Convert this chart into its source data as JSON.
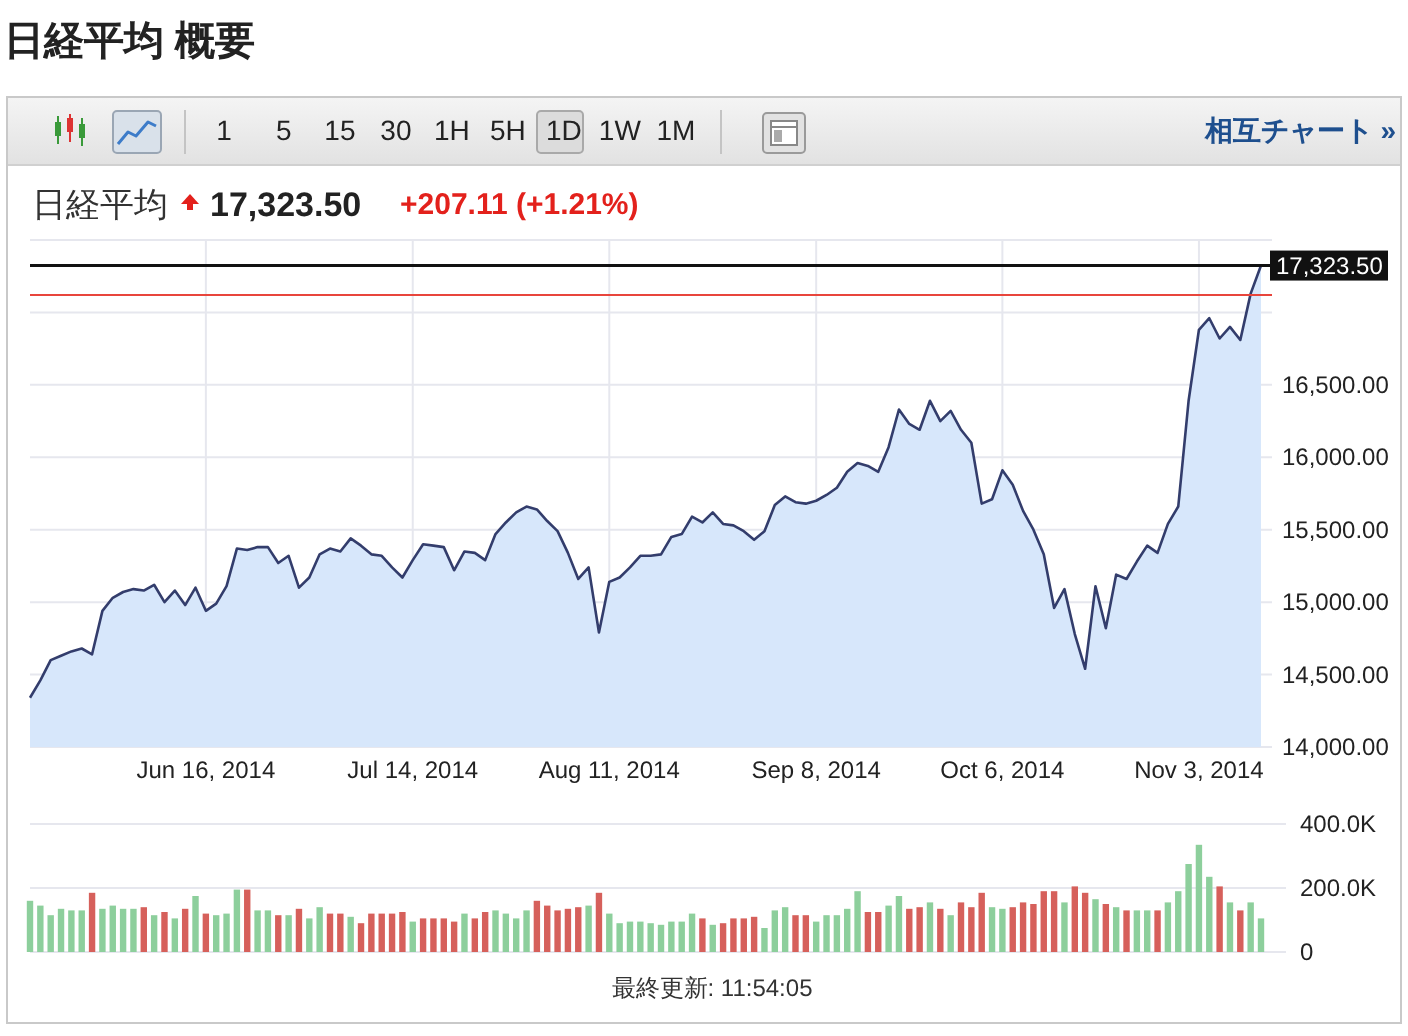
{
  "chart_data": [
    {
      "type": "area",
      "title": "日経平均 概要",
      "subtitle": "日経平均",
      "categories": [
        null,
        null,
        null,
        null,
        null,
        null,
        null,
        null,
        null,
        null,
        null,
        null,
        null,
        null,
        null,
        null,
        null,
        "Jun 16, 2014",
        null,
        null,
        null,
        null,
        null,
        null,
        null,
        null,
        null,
        null,
        null,
        null,
        null,
        null,
        null,
        null,
        null,
        null,
        null,
        "Jul 14, 2014",
        null,
        null,
        null,
        null,
        null,
        null,
        null,
        null,
        null,
        null,
        null,
        null,
        null,
        null,
        null,
        null,
        null,
        null,
        "Aug 11, 2014",
        null,
        null,
        null,
        null,
        null,
        null,
        null,
        null,
        null,
        null,
        null,
        null,
        null,
        null,
        null,
        null,
        null,
        null,
        null,
        "Sep 8, 2014",
        null,
        null,
        null,
        null,
        null,
        null,
        null,
        null,
        null,
        null,
        null,
        null,
        null,
        null,
        null,
        null,
        null,
        "Oct 6, 2014",
        null,
        null,
        null,
        null,
        null,
        null,
        null,
        null,
        null,
        null,
        null,
        null,
        null,
        null,
        null,
        null,
        null,
        null,
        "Nov 3, 2014",
        null,
        null,
        null,
        null,
        null,
        null
      ],
      "series": [
        {
          "color": "#d7e7fb",
          "values": [
            14340,
            14460,
            14600,
            14630,
            14660,
            14680,
            14640,
            14940,
            15030,
            15070,
            15090,
            15080,
            15120,
            15000,
            15080,
            14980,
            15100,
            14940,
            14990,
            15110,
            15370,
            15360,
            15380,
            15380,
            15270,
            15320,
            15100,
            15170,
            15330,
            15370,
            15350,
            15440,
            15390,
            15330,
            15320,
            15240,
            15170,
            15290,
            15400,
            15390,
            15380,
            15220,
            15350,
            15340,
            15290,
            15470,
            15550,
            15620,
            15660,
            15640,
            15560,
            15490,
            15340,
            15160,
            15240,
            14790,
            15140,
            15170,
            15240,
            15320,
            15320,
            15330,
            15450,
            15470,
            15590,
            15550,
            15620,
            15540,
            15530,
            15490,
            15430,
            15490,
            15670,
            15730,
            15690,
            15680,
            15700,
            15740,
            15790,
            15900,
            15960,
            15940,
            15900,
            16070,
            16330,
            16230,
            16190,
            16390,
            16250,
            16320,
            16190,
            16100,
            15680,
            15710,
            15910,
            15810,
            15630,
            15500,
            15330,
            14960,
            15090,
            14780,
            14540,
            15110,
            14820,
            15190,
            15160,
            15280,
            15390,
            15340,
            15540,
            15660,
            16390,
            16880,
            16960,
            16820,
            16900,
            16810,
            17130,
            17323.5
          ]
        }
      ],
      "ylim": [
        14000,
        17500
      ],
      "yticks": [
        {
          "value": 14000,
          "label": "14,000.00"
        },
        {
          "value": 14500,
          "label": "14,500.00"
        },
        {
          "value": 15000,
          "label": "15,000.00"
        },
        {
          "value": 15500,
          "label": "15,500.00"
        },
        {
          "value": 16000,
          "label": "16,000.00"
        },
        {
          "value": 16500,
          "label": "16,500.00"
        },
        {
          "value": 17000,
          "label": null
        },
        {
          "value": 17500,
          "label": null
        }
      ],
      "grid": true,
      "ref_lines": [
        {
          "axis": "y",
          "value": 17323.5,
          "label": "17,323.50",
          "color": "#111111"
        },
        {
          "axis": "y",
          "value": 17120,
          "color": "#e8453c"
        }
      ],
      "annotations": [
        "17,323.50",
        "+207.11 (+1.21%)",
        "1 5 15 30 1H 5H 1D 1W 1M",
        "相互チャート »"
      ]
    },
    {
      "type": "bar",
      "categories": [
        null,
        null,
        null,
        null,
        null,
        null,
        null,
        null,
        null,
        null,
        null,
        null,
        null,
        null,
        null,
        null,
        null,
        null,
        null,
        null,
        null,
        null,
        null,
        null,
        null,
        null,
        null,
        null,
        null,
        null,
        null,
        null,
        null,
        null,
        null,
        null,
        null,
        null,
        null,
        null,
        null,
        null,
        null,
        null,
        null,
        null,
        null,
        null,
        null,
        null,
        null,
        null,
        null,
        null,
        null,
        null,
        null,
        null,
        null,
        null,
        null,
        null,
        null,
        null,
        null,
        null,
        null,
        null,
        null,
        null,
        null,
        null,
        null,
        null,
        null,
        null,
        null,
        null,
        null,
        null,
        null,
        null,
        null,
        null,
        null,
        null,
        null,
        null,
        null,
        null,
        null,
        null,
        null,
        null,
        null,
        null,
        null,
        null,
        null,
        null,
        null,
        null,
        null,
        null,
        null,
        null,
        null,
        null,
        null,
        null,
        null,
        null,
        null,
        null,
        null,
        null,
        null,
        null,
        null,
        null
      ],
      "values": [
        160000,
        145000,
        115000,
        135000,
        130000,
        130000,
        185000,
        135000,
        145000,
        135000,
        135000,
        140000,
        115000,
        125000,
        105000,
        135000,
        175000,
        120000,
        115000,
        120000,
        195000,
        195000,
        130000,
        130000,
        115000,
        115000,
        135000,
        105000,
        140000,
        120000,
        120000,
        110000,
        90000,
        120000,
        120000,
        120000,
        125000,
        95000,
        105000,
        105000,
        105000,
        95000,
        120000,
        105000,
        125000,
        130000,
        120000,
        105000,
        130000,
        160000,
        145000,
        130000,
        135000,
        140000,
        145000,
        185000,
        120000,
        90000,
        95000,
        95000,
        90000,
        85000,
        95000,
        95000,
        120000,
        105000,
        85000,
        90000,
        105000,
        105000,
        110000,
        75000,
        130000,
        140000,
        115000,
        115000,
        95000,
        115000,
        115000,
        135000,
        190000,
        125000,
        125000,
        145000,
        175000,
        135000,
        140000,
        155000,
        135000,
        115000,
        155000,
        140000,
        185000,
        140000,
        135000,
        140000,
        155000,
        150000,
        190000,
        190000,
        155000,
        205000,
        185000,
        165000,
        150000,
        140000,
        130000,
        130000,
        130000,
        130000,
        155000,
        190000,
        275000,
        335000,
        235000,
        205000,
        155000,
        130000,
        155000,
        105000
      ],
      "colors": [
        "#8dcf9c",
        "#8dcf9c",
        "#8dcf9c",
        "#8dcf9c",
        "#8dcf9c",
        "#8dcf9c",
        "#d6605b",
        "#8dcf9c",
        "#8dcf9c",
        "#8dcf9c",
        "#8dcf9c",
        "#d6605b",
        "#8dcf9c",
        "#d6605b",
        "#8dcf9c",
        "#d6605b",
        "#8dcf9c",
        "#d6605b",
        "#8dcf9c",
        "#8dcf9c",
        "#8dcf9c",
        "#d6605b",
        "#8dcf9c",
        "#8dcf9c",
        "#d6605b",
        "#8dcf9c",
        "#d6605b",
        "#8dcf9c",
        "#8dcf9c",
        "#d6605b",
        "#d6605b",
        "#8dcf9c",
        "#d6605b",
        "#d6605b",
        "#d6605b",
        "#d6605b",
        "#d6605b",
        "#8dcf9c",
        "#d6605b",
        "#d6605b",
        "#d6605b",
        "#d6605b",
        "#8dcf9c",
        "#d6605b",
        "#d6605b",
        "#8dcf9c",
        "#8dcf9c",
        "#8dcf9c",
        "#8dcf9c",
        "#d6605b",
        "#d6605b",
        "#d6605b",
        "#d6605b",
        "#d6605b",
        "#8dcf9c",
        "#d6605b",
        "#8dcf9c",
        "#8dcf9c",
        "#8dcf9c",
        "#8dcf9c",
        "#8dcf9c",
        "#8dcf9c",
        "#8dcf9c",
        "#8dcf9c",
        "#8dcf9c",
        "#d6605b",
        "#8dcf9c",
        "#d6605b",
        "#d6605b",
        "#d6605b",
        "#d6605b",
        "#8dcf9c",
        "#8dcf9c",
        "#8dcf9c",
        "#d6605b",
        "#d6605b",
        "#8dcf9c",
        "#8dcf9c",
        "#8dcf9c",
        "#8dcf9c",
        "#8dcf9c",
        "#d6605b",
        "#d6605b",
        "#8dcf9c",
        "#8dcf9c",
        "#d6605b",
        "#d6605b",
        "#8dcf9c",
        "#d6605b",
        "#8dcf9c",
        "#d6605b",
        "#d6605b",
        "#d6605b",
        "#8dcf9c",
        "#8dcf9c",
        "#d6605b",
        "#d6605b",
        "#d6605b",
        "#d6605b",
        "#d6605b",
        "#8dcf9c",
        "#d6605b",
        "#d6605b",
        "#8dcf9c",
        "#d6605b",
        "#8dcf9c",
        "#d6605b",
        "#8dcf9c",
        "#8dcf9c",
        "#d6605b",
        "#8dcf9c",
        "#8dcf9c",
        "#8dcf9c",
        "#8dcf9c",
        "#8dcf9c",
        "#d6605b",
        "#8dcf9c",
        "#d6605b",
        "#8dcf9c",
        "#8dcf9c"
      ],
      "ylim": [
        0,
        400000
      ],
      "yticks": [
        0,
        {
          "value": 200000,
          "label": "200.0K"
        },
        {
          "value": 400000,
          "label": "400.0K"
        }
      ],
      "grid": "y",
      "annotations": [
        "最終更新: 11:54:05"
      ]
    }
  ]
}
